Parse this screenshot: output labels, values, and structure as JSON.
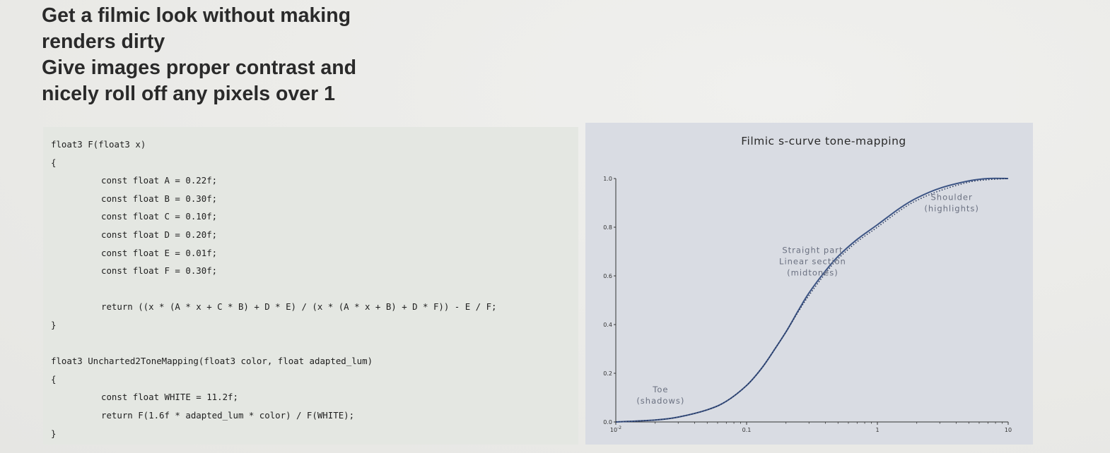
{
  "slide": {
    "title_lines": [
      "Get a filmic look without making",
      "renders dirty",
      "Give images proper contrast and",
      "nicely roll off any pixels over 1"
    ]
  },
  "code": {
    "lines": [
      {
        "text": "float3 F(float3 x)",
        "indent": 0
      },
      {
        "text": "{",
        "indent": 0
      },
      {
        "text": "const float A = 0.22f;",
        "indent": 1
      },
      {
        "text": "const float B = 0.30f;",
        "indent": 1
      },
      {
        "text": "const float C = 0.10f;",
        "indent": 1
      },
      {
        "text": "const float D = 0.20f;",
        "indent": 1
      },
      {
        "text": "const float E = 0.01f;",
        "indent": 1
      },
      {
        "text": "const float F = 0.30f;",
        "indent": 1
      },
      {
        "text": "",
        "indent": 0
      },
      {
        "text": "return ((x * (A * x + C * B) + D * E) / (x * (A * x + B) + D * F)) - E / F;",
        "indent": 1
      },
      {
        "text": "}",
        "indent": 0
      },
      {
        "text": "",
        "indent": 0
      },
      {
        "text": "float3 Uncharted2ToneMapping(float3 color, float adapted_lum)",
        "indent": 0
      },
      {
        "text": "{",
        "indent": 0
      },
      {
        "text": "const float WHITE = 11.2f;",
        "indent": 1
      },
      {
        "text": "return F(1.6f * adapted_lum * color) / F(WHITE);",
        "indent": 1
      },
      {
        "text": "}",
        "indent": 0
      }
    ]
  },
  "chart_data": {
    "type": "line",
    "title": "Filmic s-curve tone-mapping",
    "xlabel": "",
    "ylabel": "",
    "x_scale": "log",
    "xlim": [
      0.01,
      10
    ],
    "ylim": [
      0,
      1
    ],
    "x_ticks": [
      {
        "value": 0.01,
        "label": "10",
        "sup": "-2"
      },
      {
        "value": 0.1,
        "label": "0.1",
        "sup": ""
      },
      {
        "value": 1,
        "label": "1",
        "sup": ""
      },
      {
        "value": 10,
        "label": "10",
        "sup": ""
      }
    ],
    "y_ticks": [
      {
        "value": 0,
        "label": "0.0"
      },
      {
        "value": 0.2,
        "label": "0.2"
      },
      {
        "value": 0.4,
        "label": "0.4"
      },
      {
        "value": 0.6,
        "label": "0.6"
      },
      {
        "value": 0.8,
        "label": "0.8"
      },
      {
        "value": 1,
        "label": "1.0"
      }
    ],
    "series": [
      {
        "style": "solid",
        "color": "#3d5585",
        "x": [
          0.01,
          0.02,
          0.03,
          0.05,
          0.07,
          0.1,
          0.13,
          0.16,
          0.2,
          0.25,
          0.3,
          0.4,
          0.5,
          0.7,
          1.0,
          1.5,
          2.0,
          3.0,
          5.0,
          7.0,
          10.0
        ],
        "y": [
          0.0,
          0.008,
          0.02,
          0.05,
          0.085,
          0.15,
          0.22,
          0.29,
          0.37,
          0.46,
          0.53,
          0.62,
          0.68,
          0.75,
          0.81,
          0.88,
          0.92,
          0.96,
          0.99,
          1.0,
          1.0
        ]
      },
      {
        "style": "dotted",
        "color": "#1f2f55",
        "x": [
          0.01,
          0.02,
          0.03,
          0.05,
          0.07,
          0.1,
          0.13,
          0.16,
          0.2,
          0.25,
          0.3,
          0.4,
          0.5,
          0.7,
          1.0,
          1.5,
          2.0,
          3.0,
          5.0,
          7.0,
          10.0
        ],
        "y": [
          0.0,
          0.008,
          0.02,
          0.05,
          0.085,
          0.15,
          0.22,
          0.29,
          0.37,
          0.455,
          0.52,
          0.61,
          0.67,
          0.74,
          0.8,
          0.87,
          0.91,
          0.95,
          0.985,
          0.995,
          1.0
        ]
      }
    ],
    "annotations": [
      {
        "lines": [
          "Toe",
          "(shadows)"
        ],
        "x": 0.022,
        "y": 0.11
      },
      {
        "lines": [
          "Straight part",
          "Linear section",
          "(midtones)"
        ],
        "x": 0.32,
        "y": 0.66
      },
      {
        "lines": [
          "Shoulder",
          "(highlights)"
        ],
        "x": 3.7,
        "y": 0.9
      }
    ],
    "grid": false,
    "legend": "none"
  }
}
